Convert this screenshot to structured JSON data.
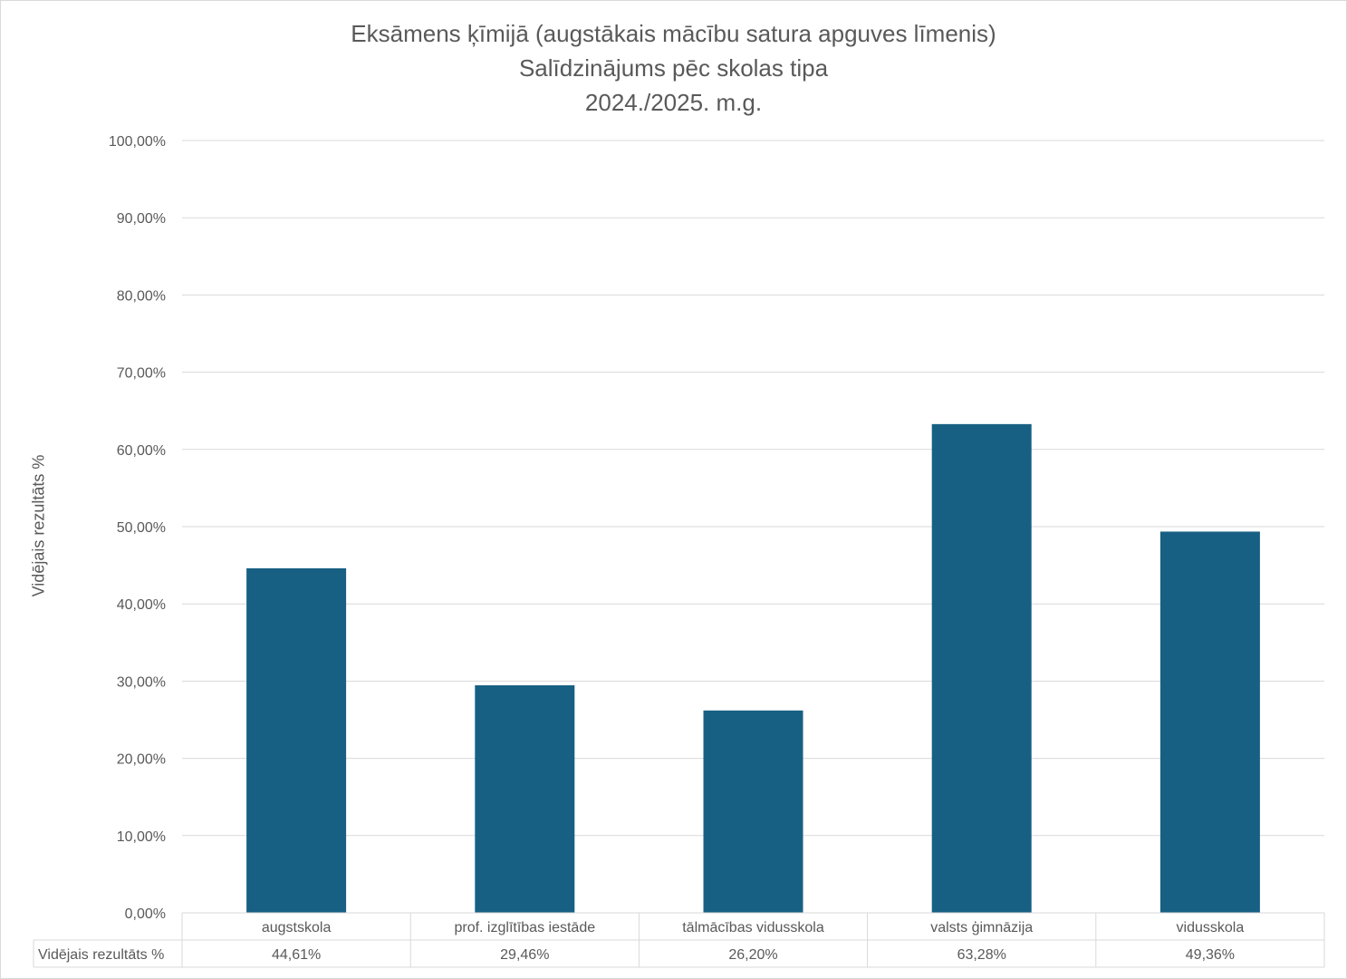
{
  "chart_data": {
    "type": "bar",
    "title": "Eksāmens ķīmijā (augstākais mācību satura apguves līmenis)",
    "subtitle": "Salīdzinājums pēc skolas tipa",
    "period": "2024./2025. m.g.",
    "ylabel": "Vidējais rezultāts %",
    "categories": [
      "augstskola",
      "prof. izglītības iestāde",
      "tālmācības vidusskola",
      "valsts ģimnāzija",
      "vidusskola"
    ],
    "series": [
      {
        "name": "Vidējais rezultāts %",
        "values": [
          44.61,
          29.46,
          26.2,
          63.28,
          49.36
        ],
        "value_labels": [
          "44,61%",
          "29,46%",
          "26,20%",
          "63,28%",
          "49,36%"
        ]
      }
    ],
    "ylim": [
      0,
      100
    ],
    "yticks": [
      "0,00%",
      "10,00%",
      "20,00%",
      "30,00%",
      "40,00%",
      "50,00%",
      "60,00%",
      "70,00%",
      "80,00%",
      "90,00%",
      "100,00%"
    ],
    "grid": true,
    "data_table": true,
    "colors": {
      "bar": "#176083",
      "grid": "#d9d9d9",
      "text": "#595959"
    }
  }
}
